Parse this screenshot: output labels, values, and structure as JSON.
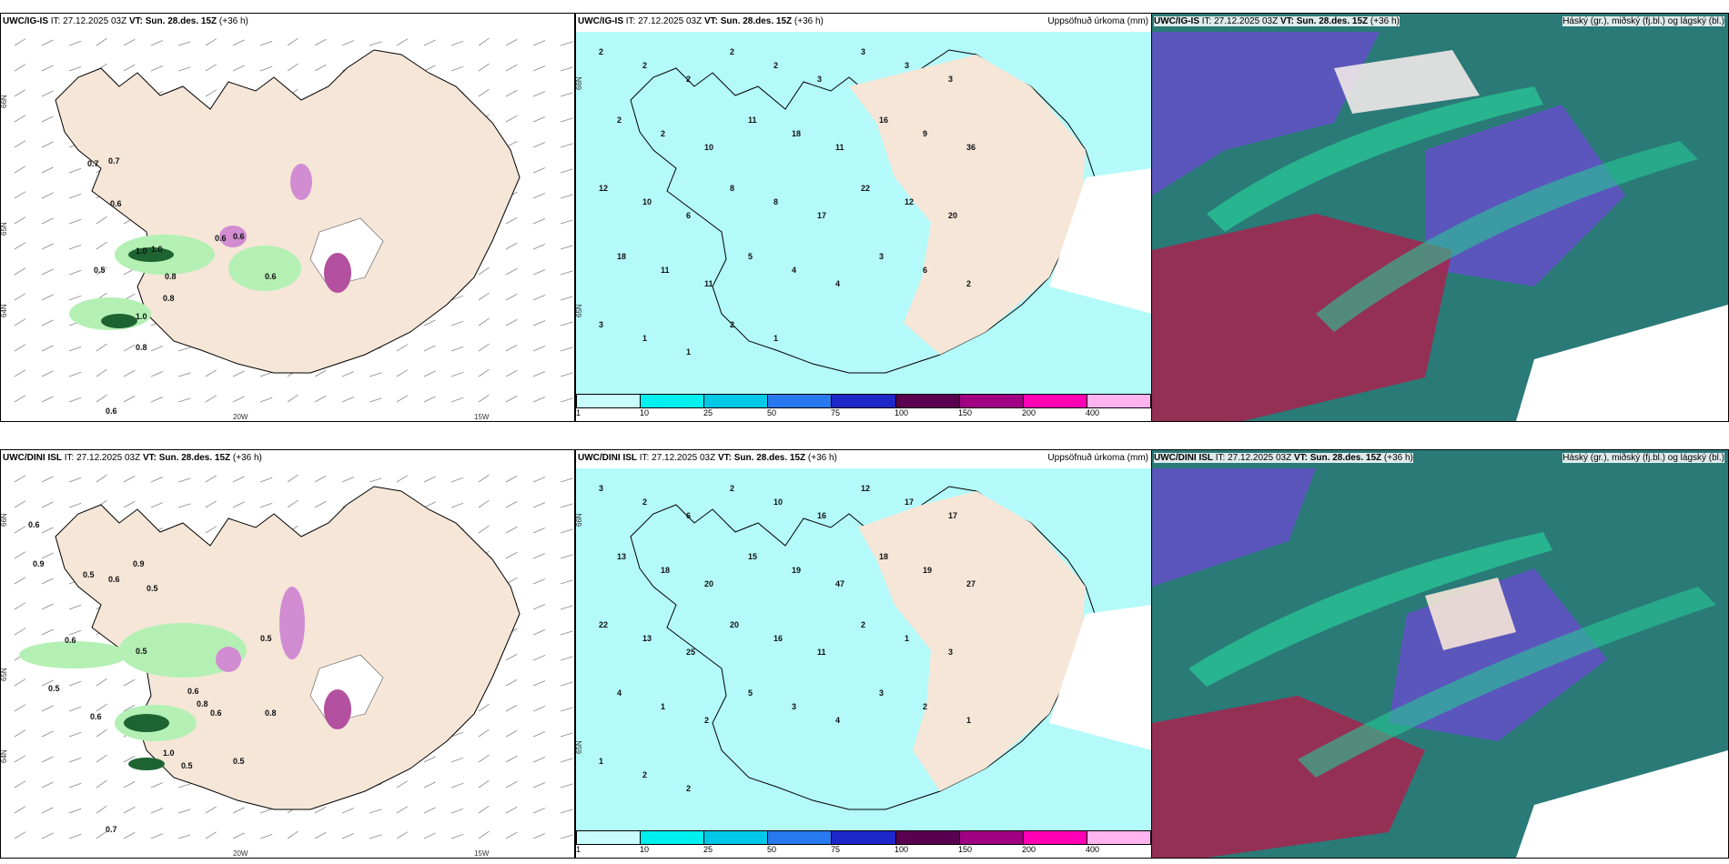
{
  "rows": [
    {
      "model": "UWC/IG-IS",
      "it": "IT: 27.12.2025 03Z",
      "vt_label": "VT:",
      "vt": "Sun. 28.des. 15Z",
      "lead": "(+36 h)",
      "wind_labels": [
        "0.7",
        "0.7",
        "0.6",
        "1.0",
        "1.0",
        "0.5",
        "0.8",
        "0.8",
        "1.0",
        "0.8",
        "0.6",
        "0.6",
        "0.6",
        "0.6"
      ],
      "precip_numbers": [
        "2",
        "2",
        "2",
        "2",
        "2",
        "3",
        "3",
        "3",
        "3",
        "2",
        "2",
        "10",
        "11",
        "18",
        "11",
        "16",
        "9",
        "36",
        "12",
        "10",
        "6",
        "8",
        "8",
        "17",
        "22",
        "12",
        "20",
        "18",
        "11",
        "11",
        "5",
        "4",
        "4",
        "3",
        "6",
        "2",
        "3",
        "1",
        "1",
        "2",
        "1"
      ],
      "lat_labels": [
        "66N",
        "65N",
        "64N",
        "63N"
      ],
      "lon_labels": [
        "20W",
        "15W"
      ]
    },
    {
      "model": "UWC/DINI ISL",
      "it": "IT: 27.12.2025 03Z",
      "vt_label": "VT:",
      "vt": "Sun. 28.des. 15Z",
      "lead": "(+36 h)",
      "wind_labels": [
        "0.9",
        "0.6",
        "0.6",
        "0.8",
        "0.5",
        "0.5",
        "0.6",
        "1.0",
        "0.6",
        "0.5",
        "0.8",
        "0.6",
        "0.5",
        "0.7",
        "0.9",
        "0.5",
        "0.6",
        "0.5",
        "0.5"
      ],
      "precip_numbers": [
        "3",
        "2",
        "6",
        "2",
        "10",
        "16",
        "12",
        "17",
        "17",
        "13",
        "18",
        "20",
        "15",
        "19",
        "47",
        "18",
        "19",
        "27",
        "22",
        "13",
        "25",
        "20",
        "16",
        "11",
        "2",
        "1",
        "3",
        "4",
        "1",
        "2",
        "5",
        "3",
        "4",
        "3",
        "2",
        "1",
        "1",
        "2",
        "2"
      ],
      "lat_labels": [
        "66N",
        "65N",
        "64N",
        "63N"
      ],
      "lon_labels": [
        "20W",
        "15W"
      ]
    }
  ],
  "precip_title": "Uppsöfnuð úrkoma (mm)",
  "cloud_title": "Háský (gr.), miðský (fj.bl.) og lágský (bl.)",
  "legend": {
    "labels": [
      "1",
      "10",
      "25",
      "50",
      "75",
      "100",
      "150",
      "200",
      "400"
    ],
    "colors": [
      "#c8fcfc",
      "#00f0f0",
      "#00c8e6",
      "#2878f0",
      "#1e28c8",
      "#5a0050",
      "#a00082",
      "#ff00b4",
      "#ffb4f0"
    ]
  },
  "colors": {
    "land": "#f5e6d8",
    "precip_light": "#b4fafa",
    "green_light": "#b4f0b4",
    "green_dark": "#1e6432",
    "magenta": "#d28cd2",
    "cloud_purple": "#6450c8",
    "cloud_teal": "#2a7a78",
    "cloud_green": "#28c896",
    "cloud_red": "#a02850"
  }
}
